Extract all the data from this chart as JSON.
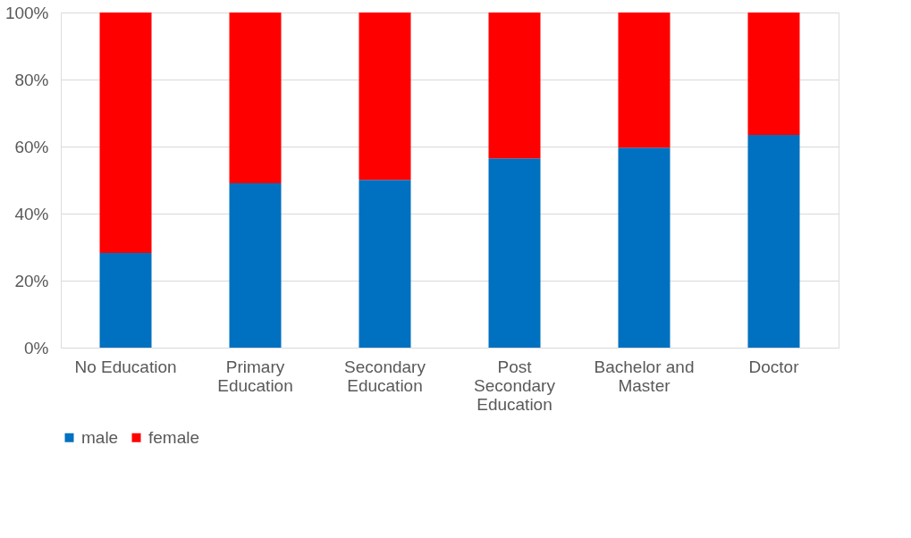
{
  "chart_data": {
    "type": "bar",
    "stacked": true,
    "categories": [
      "No Education",
      "Primary Education",
      "Secondary Education",
      "Post Secondary Education",
      "Bachelor and Master",
      "Doctor"
    ],
    "series": [
      {
        "name": "male",
        "color": "#0070c0",
        "values": [
          28.3,
          49.1,
          50.1,
          56.5,
          59.7,
          63.5
        ]
      },
      {
        "name": "female",
        "color": "#ff0000",
        "values": [
          71.7,
          50.9,
          49.9,
          43.5,
          40.3,
          36.5
        ]
      }
    ],
    "ylim": [
      0,
      100
    ],
    "yticks": [
      {
        "value": 0,
        "label": "0%"
      },
      {
        "value": 20,
        "label": "20%"
      },
      {
        "value": 40,
        "label": "40%"
      },
      {
        "value": 60,
        "label": "60%"
      },
      {
        "value": 80,
        "label": "80%"
      },
      {
        "value": 100,
        "label": "100%"
      }
    ],
    "grid": "y",
    "legend": "bottom"
  }
}
